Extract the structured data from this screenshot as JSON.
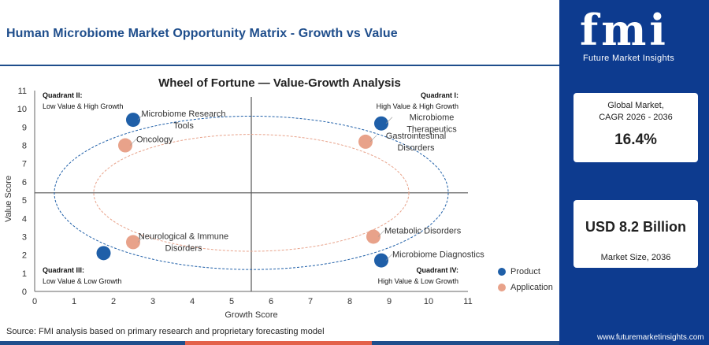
{
  "page_title": "Human Microbiome Market Opportunity Matrix - Growth vs Value",
  "brand": {
    "logo_text": "fmi",
    "tagline": "Future Market Insights"
  },
  "sidebar": {
    "cagr_label_line1": "Global Market,",
    "cagr_label_line2": "CAGR 2026 - 2036",
    "cagr_value": "16.4%",
    "size_value": "USD 8.2 Billion",
    "size_label": "Market Size, 2036",
    "url": "www.futuremarketinsights.com"
  },
  "source": "Source: FMI analysis based on primary research and proprietary forecasting model",
  "colors": {
    "product": "#1f5fa8",
    "application": "#e8a28a",
    "brand_blue": "#0d3b8f",
    "title_blue": "#1f4e8c",
    "accent_orange": "#e3614a"
  },
  "chart_data": {
    "type": "scatter",
    "title": "Wheel of Fortune — Value-Growth Analysis",
    "xlabel": "Growth Score",
    "ylabel": "Value Score",
    "xlim": [
      0,
      11
    ],
    "ylim": [
      0,
      11
    ],
    "xticks": [
      0,
      1,
      2,
      3,
      4,
      5,
      6,
      7,
      8,
      9,
      10,
      11
    ],
    "yticks": [
      0,
      1,
      2,
      3,
      4,
      5,
      6,
      7,
      8,
      9,
      10,
      11
    ],
    "divider_x": 5.5,
    "divider_y": 5.4,
    "legend": {
      "position": "right",
      "items": [
        {
          "name": "Product",
          "color_key": "product"
        },
        {
          "name": "Application",
          "color_key": "application"
        }
      ]
    },
    "quadrants": [
      {
        "title": "Quadrant II:",
        "subtitle": "Low Value & High Growth",
        "corner": "top-left"
      },
      {
        "title": "Quadrant I:",
        "subtitle": "High Value & High Growth",
        "corner": "top-right"
      },
      {
        "title": "Quadrant III:",
        "subtitle": "Low Value & Low Growth",
        "corner": "bottom-left"
      },
      {
        "title": "Quadrant IV:",
        "subtitle": "High Value & Low Growth",
        "corner": "bottom-right"
      }
    ],
    "points": [
      {
        "label": [
          "Microbiome Research",
          "Tools"
        ],
        "x": 2.5,
        "y": 9.4,
        "series": "Product",
        "label_side": "right"
      },
      {
        "label": [
          "Oncology"
        ],
        "x": 2.3,
        "y": 8.0,
        "series": "Application",
        "label_side": "right"
      },
      {
        "label": [
          "Microbiome",
          "Therapeutics"
        ],
        "x": 8.8,
        "y": 9.2,
        "series": "Product",
        "label_side": "right"
      },
      {
        "label": [
          "Gastrointestinal",
          "Disorders"
        ],
        "x": 8.4,
        "y": 8.2,
        "series": "Application",
        "label_side": "right"
      },
      {
        "label": [
          "Neurological & Immune",
          "Disorders"
        ],
        "x": 2.5,
        "y": 2.7,
        "series": "Application",
        "label_side": "right"
      },
      {
        "label": [
          "Metabolic Disorders"
        ],
        "x": 8.6,
        "y": 3.0,
        "series": "Application",
        "label_side": "right"
      },
      {
        "label": [
          "Microbiome Diagnostics"
        ],
        "x": 8.8,
        "y": 1.7,
        "series": "Product",
        "label_side": "right"
      },
      {
        "label": [
          ""
        ],
        "x": 1.75,
        "y": 2.1,
        "series": "Product",
        "label_side": "none"
      }
    ],
    "ellipses": [
      {
        "series": "Product",
        "cx": 5.5,
        "cy": 5.4,
        "rx": 5.0,
        "ry": 4.2
      },
      {
        "series": "Application",
        "cx": 5.5,
        "cy": 5.4,
        "rx": 4.0,
        "ry": 3.2
      }
    ]
  }
}
